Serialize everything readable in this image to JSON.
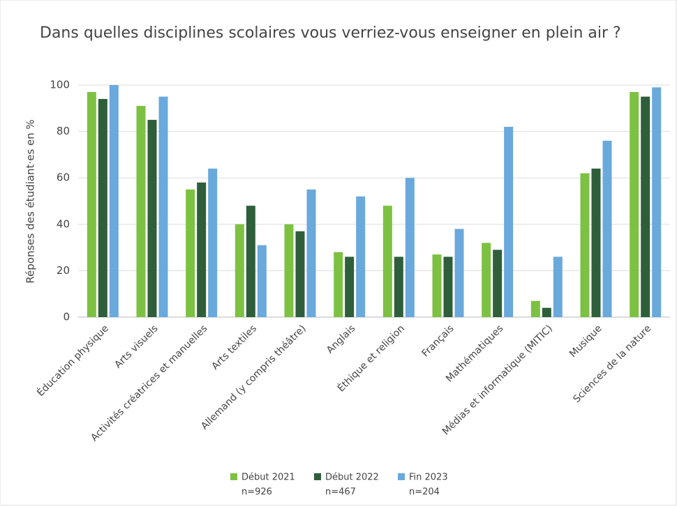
{
  "chart_data": {
    "type": "bar",
    "title": "Dans quelles disciplines scolaires vous verriez-vous enseigner en plein air ?",
    "y_label": "Réponses des étudiant·es en %",
    "categories": [
      "Éducation physique",
      "Arts visuels",
      "Activités créatrices et manuelles",
      "Arts textiles",
      "Allemand (y compris théâtre)",
      "Anglais",
      "Éthique et religion",
      "Français",
      "Mathématiques",
      "Médias et informatique (MITIC)",
      "Musique",
      "Sciences de la nature"
    ],
    "series": [
      {
        "name": "Début 2021",
        "sample": "n=926",
        "color": "#7dc142",
        "values": [
          97,
          91,
          55,
          40,
          40,
          28,
          48,
          27,
          32,
          7,
          62,
          97
        ]
      },
      {
        "name": "Début 2022",
        "sample": "n=467",
        "color": "#2f5e3b",
        "values": [
          94,
          85,
          58,
          48,
          37,
          26,
          26,
          26,
          29,
          4,
          64,
          95
        ]
      },
      {
        "name": "Fin 2023",
        "sample": "n=204",
        "color": "#6aa9dc",
        "values": [
          100,
          95,
          64,
          31,
          55,
          52,
          60,
          38,
          82,
          26,
          76,
          99
        ]
      }
    ],
    "ylim": [
      0,
      100
    ],
    "yticks": [
      0,
      20,
      40,
      60,
      80,
      100
    ],
    "grid": true
  }
}
